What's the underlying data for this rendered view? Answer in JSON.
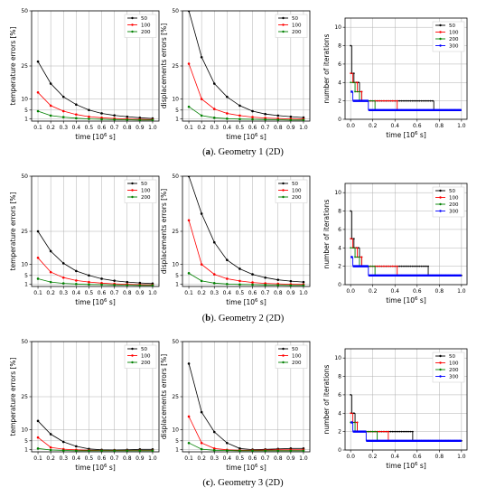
{
  "figure": {
    "captions": [
      {
        "label": "a",
        "rest": ". Geometry 1 (2D)"
      },
      {
        "label": "b",
        "rest": ". Geometry 2 (2D)"
      },
      {
        "label": "c",
        "rest": ". Geometry 3 (2D)"
      }
    ],
    "palette": {
      "50": "#000000",
      "100": "#ff0000",
      "200": "#008000",
      "300": "#0000ff"
    }
  },
  "chart_data": [
    {
      "id": "a-temp",
      "type": "line",
      "ylabel": "temperature errors [%]",
      "xlabel": "time [10$^6$ s]",
      "xlim": [
        0.05,
        1.05
      ],
      "ylim": [
        0,
        50
      ],
      "xticks": [
        0.1,
        0.2,
        0.3,
        0.4,
        0.5,
        0.6,
        0.7,
        0.8,
        0.9,
        1.0
      ],
      "yticks": [
        1,
        5,
        10,
        25,
        50
      ],
      "x": [
        0.1,
        0.2,
        0.3,
        0.4,
        0.5,
        0.6,
        0.7,
        0.8,
        0.9,
        1.0
      ],
      "series": [
        {
          "name": "50",
          "color": "#000000",
          "values": [
            27,
            17,
            11,
            7.5,
            5,
            3.5,
            2.6,
            2.0,
            1.5,
            1.2
          ]
        },
        {
          "name": "100",
          "color": "#ff0000",
          "values": [
            13,
            7,
            4.5,
            3,
            2,
            1.5,
            1.2,
            1.0,
            0.8,
            0.7
          ]
        },
        {
          "name": "200",
          "color": "#008000",
          "values": [
            4.5,
            2.5,
            1.8,
            1.3,
            1.0,
            0.8,
            0.7,
            0.6,
            0.5,
            0.5
          ]
        }
      ],
      "legend": "top-right"
    },
    {
      "id": "a-disp",
      "type": "line",
      "ylabel": "displacements errors [%]",
      "xlabel": "time [10$^6$ s]",
      "xlim": [
        0.05,
        1.05
      ],
      "ylim": [
        0,
        50
      ],
      "xticks": [
        0.1,
        0.2,
        0.3,
        0.4,
        0.5,
        0.6,
        0.7,
        0.8,
        0.9,
        1.0
      ],
      "yticks": [
        1,
        5,
        10,
        25,
        50
      ],
      "x": [
        0.1,
        0.2,
        0.3,
        0.4,
        0.5,
        0.6,
        0.7,
        0.8,
        0.9,
        1.0
      ],
      "series": [
        {
          "name": "50",
          "color": "#000000",
          "values": [
            50,
            29,
            17,
            11,
            7,
            4.5,
            3.2,
            2.5,
            2.0,
            1.6
          ]
        },
        {
          "name": "100",
          "color": "#ff0000",
          "values": [
            26,
            10,
            5.5,
            3.5,
            2.5,
            1.8,
            1.4,
            1.2,
            1.0,
            0.9
          ]
        },
        {
          "name": "200",
          "color": "#008000",
          "values": [
            6.5,
            2.5,
            1.5,
            1.1,
            0.9,
            0.8,
            0.7,
            0.6,
            0.5,
            0.5
          ]
        }
      ],
      "legend": "top-right"
    },
    {
      "id": "a-iter",
      "type": "line",
      "ylabel": "number of iterations",
      "xlabel": "time [10$^6$ s]",
      "xlim": [
        -0.05,
        1.05
      ],
      "ylim": [
        0,
        11
      ],
      "xticks": [
        0.0,
        0.2,
        0.4,
        0.6,
        0.8,
        1.0
      ],
      "yticks": [
        0,
        2,
        4,
        6,
        8,
        10
      ],
      "series": [
        {
          "name": "50",
          "color": "#000000",
          "step": 0.02,
          "segments": [
            [
              0,
              0.01,
              8
            ],
            [
              0.01,
              0.03,
              5
            ],
            [
              0.03,
              0.08,
              4
            ],
            [
              0.08,
              0.1,
              3
            ],
            [
              0.1,
              0.75,
              2
            ],
            [
              0.75,
              1.0,
              1
            ]
          ]
        },
        {
          "name": "100",
          "color": "#ff0000",
          "step": 0.04,
          "segments": [
            [
              0,
              0.02,
              5
            ],
            [
              0.02,
              0.06,
              4
            ],
            [
              0.06,
              0.1,
              3
            ],
            [
              0.1,
              0.42,
              2
            ],
            [
              0.42,
              1.0,
              1
            ]
          ]
        },
        {
          "name": "200",
          "color": "#008000",
          "step": 0.08,
          "segments": [
            [
              0,
              0.04,
              4
            ],
            [
              0.04,
              0.08,
              3
            ],
            [
              0.08,
              0.22,
              2
            ],
            [
              0.22,
              1.0,
              1
            ]
          ]
        },
        {
          "name": "300",
          "color": "#0000ff",
          "step": 0.14,
          "segments": [
            [
              0,
              0.02,
              3
            ],
            [
              0.02,
              0.16,
              2
            ],
            [
              0.16,
              1.0,
              1
            ]
          ]
        }
      ],
      "legend": "top-right"
    },
    {
      "id": "b-temp",
      "type": "line",
      "ylabel": "temperature errors [%]",
      "xlabel": "time [10$^6$ s]",
      "xlim": [
        0.05,
        1.05
      ],
      "ylim": [
        0,
        50
      ],
      "xticks": [
        0.1,
        0.2,
        0.3,
        0.4,
        0.5,
        0.6,
        0.7,
        0.8,
        0.9,
        1.0
      ],
      "yticks": [
        1,
        5,
        10,
        25,
        50
      ],
      "x": [
        0.1,
        0.2,
        0.3,
        0.4,
        0.5,
        0.6,
        0.7,
        0.8,
        0.9,
        1.0
      ],
      "series": [
        {
          "name": "50",
          "color": "#000000",
          "values": [
            25,
            16,
            10.5,
            7,
            5,
            3.5,
            2.6,
            2.0,
            1.6,
            1.3
          ]
        },
        {
          "name": "100",
          "color": "#ff0000",
          "values": [
            13,
            6.5,
            4,
            2.7,
            2,
            1.5,
            1.2,
            1.0,
            0.8,
            0.7
          ]
        },
        {
          "name": "200",
          "color": "#008000",
          "values": [
            3.5,
            2,
            1.4,
            1.1,
            0.9,
            0.8,
            0.7,
            0.6,
            0.5,
            0.5
          ]
        }
      ],
      "legend": "top-right"
    },
    {
      "id": "b-disp",
      "type": "line",
      "ylabel": "displacements errors [%]",
      "xlabel": "time [10$^6$ s]",
      "xlim": [
        0.05,
        1.05
      ],
      "ylim": [
        0,
        50
      ],
      "xticks": [
        0.1,
        0.2,
        0.3,
        0.4,
        0.5,
        0.6,
        0.7,
        0.8,
        0.9,
        1.0
      ],
      "yticks": [
        1,
        5,
        10,
        25,
        50
      ],
      "x": [
        0.1,
        0.2,
        0.3,
        0.4,
        0.5,
        0.6,
        0.7,
        0.8,
        0.9,
        1.0
      ],
      "series": [
        {
          "name": "50",
          "color": "#000000",
          "values": [
            50,
            33,
            20,
            12,
            8,
            5.5,
            4,
            3,
            2.4,
            2.0
          ]
        },
        {
          "name": "100",
          "color": "#ff0000",
          "values": [
            30,
            10,
            5.5,
            3.5,
            2.5,
            1.8,
            1.4,
            1.2,
            1.0,
            0.9
          ]
        },
        {
          "name": "200",
          "color": "#008000",
          "values": [
            6,
            2.5,
            1.5,
            1.1,
            0.9,
            0.8,
            0.7,
            0.6,
            0.5,
            0.5
          ]
        }
      ],
      "legend": "top-right"
    },
    {
      "id": "b-iter",
      "type": "line",
      "ylabel": "number of iterations",
      "xlabel": "time [10$^6$ s]",
      "xlim": [
        -0.05,
        1.05
      ],
      "ylim": [
        0,
        11
      ],
      "xticks": [
        0.0,
        0.2,
        0.4,
        0.6,
        0.8,
        1.0
      ],
      "yticks": [
        0,
        2,
        4,
        6,
        8,
        10
      ],
      "series": [
        {
          "name": "50",
          "color": "#000000",
          "step": 0.02,
          "segments": [
            [
              0,
              0.01,
              8
            ],
            [
              0.01,
              0.03,
              5
            ],
            [
              0.03,
              0.08,
              4
            ],
            [
              0.08,
              0.1,
              3
            ],
            [
              0.1,
              0.7,
              2
            ],
            [
              0.7,
              1.0,
              1
            ]
          ]
        },
        {
          "name": "100",
          "color": "#ff0000",
          "step": 0.04,
          "segments": [
            [
              0,
              0.02,
              5
            ],
            [
              0.02,
              0.06,
              4
            ],
            [
              0.06,
              0.1,
              3
            ],
            [
              0.1,
              0.42,
              2
            ],
            [
              0.42,
              1.0,
              1
            ]
          ]
        },
        {
          "name": "200",
          "color": "#008000",
          "step": 0.08,
          "segments": [
            [
              0,
              0.04,
              4
            ],
            [
              0.04,
              0.08,
              3
            ],
            [
              0.08,
              0.22,
              2
            ],
            [
              0.22,
              1.0,
              1
            ]
          ]
        },
        {
          "name": "300",
          "color": "#0000ff",
          "step": 0.14,
          "segments": [
            [
              0,
              0.02,
              3
            ],
            [
              0.02,
              0.16,
              2
            ],
            [
              0.16,
              1.0,
              1
            ]
          ]
        }
      ],
      "legend": "top-right"
    },
    {
      "id": "c-temp",
      "type": "line",
      "ylabel": "temperature errors [%]",
      "xlabel": "time [10$^6$ s]",
      "xlim": [
        0.05,
        1.05
      ],
      "ylim": [
        0,
        50
      ],
      "xticks": [
        0.1,
        0.2,
        0.3,
        0.4,
        0.5,
        0.6,
        0.7,
        0.8,
        0.9,
        1.0
      ],
      "yticks": [
        1,
        5,
        10,
        25,
        50
      ],
      "x": [
        0.1,
        0.2,
        0.3,
        0.4,
        0.5,
        0.6,
        0.7,
        0.8,
        0.9,
        1.0
      ],
      "series": [
        {
          "name": "50",
          "color": "#000000",
          "values": [
            14,
            8,
            4.5,
            2.5,
            1.3,
            0.9,
            0.8,
            0.9,
            1.1,
            1.1
          ]
        },
        {
          "name": "100",
          "color": "#ff0000",
          "values": [
            6.5,
            2,
            1.2,
            0.9,
            0.7,
            0.6,
            0.6,
            0.6,
            0.6,
            0.6
          ]
        },
        {
          "name": "200",
          "color": "#008000",
          "values": [
            1.5,
            0.8,
            0.6,
            0.5,
            0.5,
            0.5,
            0.5,
            0.5,
            0.5,
            0.5
          ]
        }
      ],
      "legend": "top-right"
    },
    {
      "id": "c-disp",
      "type": "line",
      "ylabel": "displacements errors [%]",
      "xlabel": "time [10$^6$ s]",
      "xlim": [
        0.05,
        1.05
      ],
      "ylim": [
        0,
        50
      ],
      "xticks": [
        0.1,
        0.2,
        0.3,
        0.4,
        0.5,
        0.6,
        0.7,
        0.8,
        0.9,
        1.0
      ],
      "yticks": [
        1,
        5,
        10,
        25,
        50
      ],
      "x": [
        0.1,
        0.2,
        0.3,
        0.4,
        0.5,
        0.6,
        0.7,
        0.8,
        0.9,
        1.0
      ],
      "series": [
        {
          "name": "50",
          "color": "#000000",
          "values": [
            40,
            18,
            9,
            4,
            1.5,
            1.0,
            1.1,
            1.3,
            1.5,
            1.5
          ]
        },
        {
          "name": "100",
          "color": "#ff0000",
          "values": [
            16,
            4,
            1.5,
            0.9,
            0.7,
            0.7,
            0.8,
            0.9,
            0.9,
            0.9
          ]
        },
        {
          "name": "200",
          "color": "#008000",
          "values": [
            4,
            1.2,
            0.7,
            0.6,
            0.5,
            0.5,
            0.5,
            0.5,
            0.5,
            0.5
          ]
        }
      ],
      "legend": "top-right"
    },
    {
      "id": "c-iter",
      "type": "line",
      "ylabel": "number of iterations",
      "xlabel": "time [10$^6$ s]",
      "xlim": [
        -0.05,
        1.05
      ],
      "ylim": [
        0,
        11
      ],
      "xticks": [
        0.0,
        0.2,
        0.4,
        0.6,
        0.8,
        1.0
      ],
      "yticks": [
        0,
        2,
        4,
        6,
        8,
        10
      ],
      "series": [
        {
          "name": "50",
          "color": "#000000",
          "step": 0.02,
          "segments": [
            [
              0,
              0.01,
              6
            ],
            [
              0.01,
              0.04,
              4
            ],
            [
              0.04,
              0.06,
              3
            ],
            [
              0.06,
              0.56,
              2
            ],
            [
              0.56,
              1.0,
              1
            ]
          ]
        },
        {
          "name": "100",
          "color": "#ff0000",
          "step": 0.04,
          "segments": [
            [
              0,
              0.02,
              4
            ],
            [
              0.02,
              0.06,
              3
            ],
            [
              0.06,
              0.34,
              2
            ],
            [
              0.34,
              1.0,
              1
            ]
          ]
        },
        {
          "name": "200",
          "color": "#008000",
          "step": 0.08,
          "segments": [
            [
              0,
              0.04,
              3
            ],
            [
              0.04,
              0.24,
              2
            ],
            [
              0.24,
              1.0,
              1
            ]
          ]
        },
        {
          "name": "300",
          "color": "#0000ff",
          "step": 0.14,
          "segments": [
            [
              0,
              0.02,
              3
            ],
            [
              0.02,
              0.14,
              2
            ],
            [
              0.14,
              1.0,
              1
            ]
          ]
        }
      ],
      "legend": "top-right"
    }
  ]
}
